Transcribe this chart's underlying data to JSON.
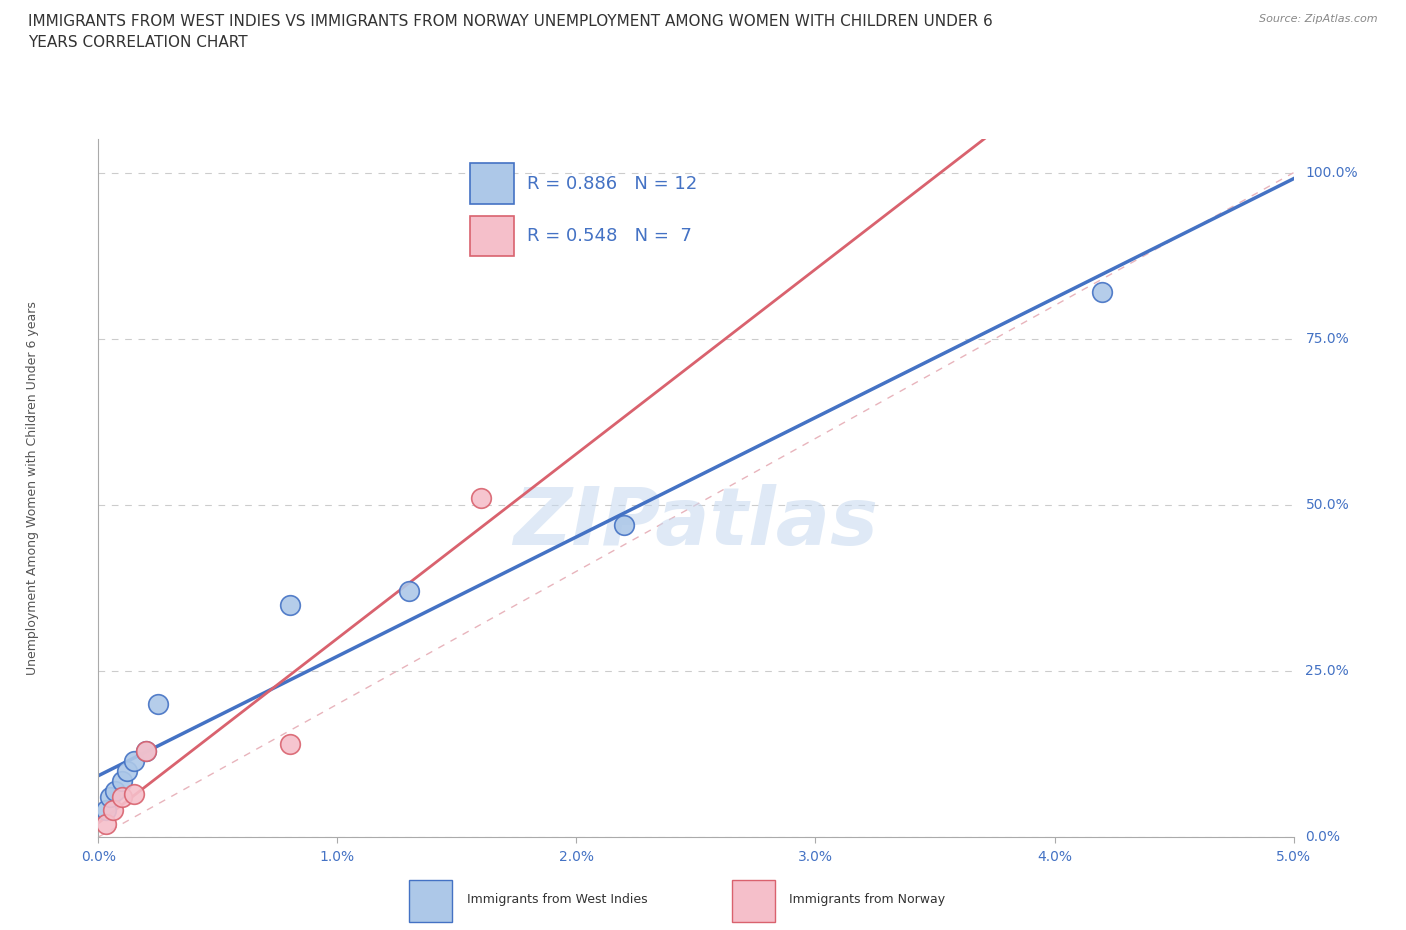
{
  "title": "IMMIGRANTS FROM WEST INDIES VS IMMIGRANTS FROM NORWAY UNEMPLOYMENT AMONG WOMEN WITH CHILDREN UNDER 6\nYEARS CORRELATION CHART",
  "source": "Source: ZipAtlas.com",
  "ylabel": "Unemployment Among Women with Children Under 6 years",
  "ytick_labels": [
    "0.0%",
    "25.0%",
    "50.0%",
    "75.0%",
    "100.0%"
  ],
  "ytick_values": [
    0.0,
    0.25,
    0.5,
    0.75,
    1.0
  ],
  "xtick_labels": [
    "0.0%",
    "1.0%",
    "2.0%",
    "3.0%",
    "4.0%",
    "5.0%"
  ],
  "xtick_values": [
    0.0,
    0.01,
    0.02,
    0.03,
    0.04,
    0.05
  ],
  "xlim": [
    0.0,
    0.05
  ],
  "ylim": [
    0.0,
    1.05
  ],
  "west_indies_x": [
    0.0003,
    0.0005,
    0.0007,
    0.001,
    0.0012,
    0.0015,
    0.002,
    0.0025,
    0.008,
    0.013,
    0.022,
    0.042
  ],
  "west_indies_y": [
    0.04,
    0.06,
    0.07,
    0.085,
    0.1,
    0.115,
    0.13,
    0.2,
    0.35,
    0.37,
    0.47,
    0.82
  ],
  "norway_x": [
    0.0003,
    0.0006,
    0.001,
    0.0015,
    0.002,
    0.008,
    0.016
  ],
  "norway_y": [
    0.02,
    0.04,
    0.06,
    0.065,
    0.13,
    0.14,
    0.51
  ],
  "west_indies_color": "#adc8e8",
  "norway_color": "#f5bfca",
  "west_indies_line_color": "#4472c4",
  "norway_line_color": "#d9626e",
  "diagonal_color": "#e8b4bc",
  "R_west_indies": 0.886,
  "N_west_indies": 12,
  "R_norway": 0.548,
  "N_norway": 7,
  "watermark": "ZIPatlas",
  "background_color": "#ffffff",
  "title_fontsize": 11,
  "axis_label_fontsize": 9,
  "tick_fontsize": 10,
  "legend_fontsize": 13
}
